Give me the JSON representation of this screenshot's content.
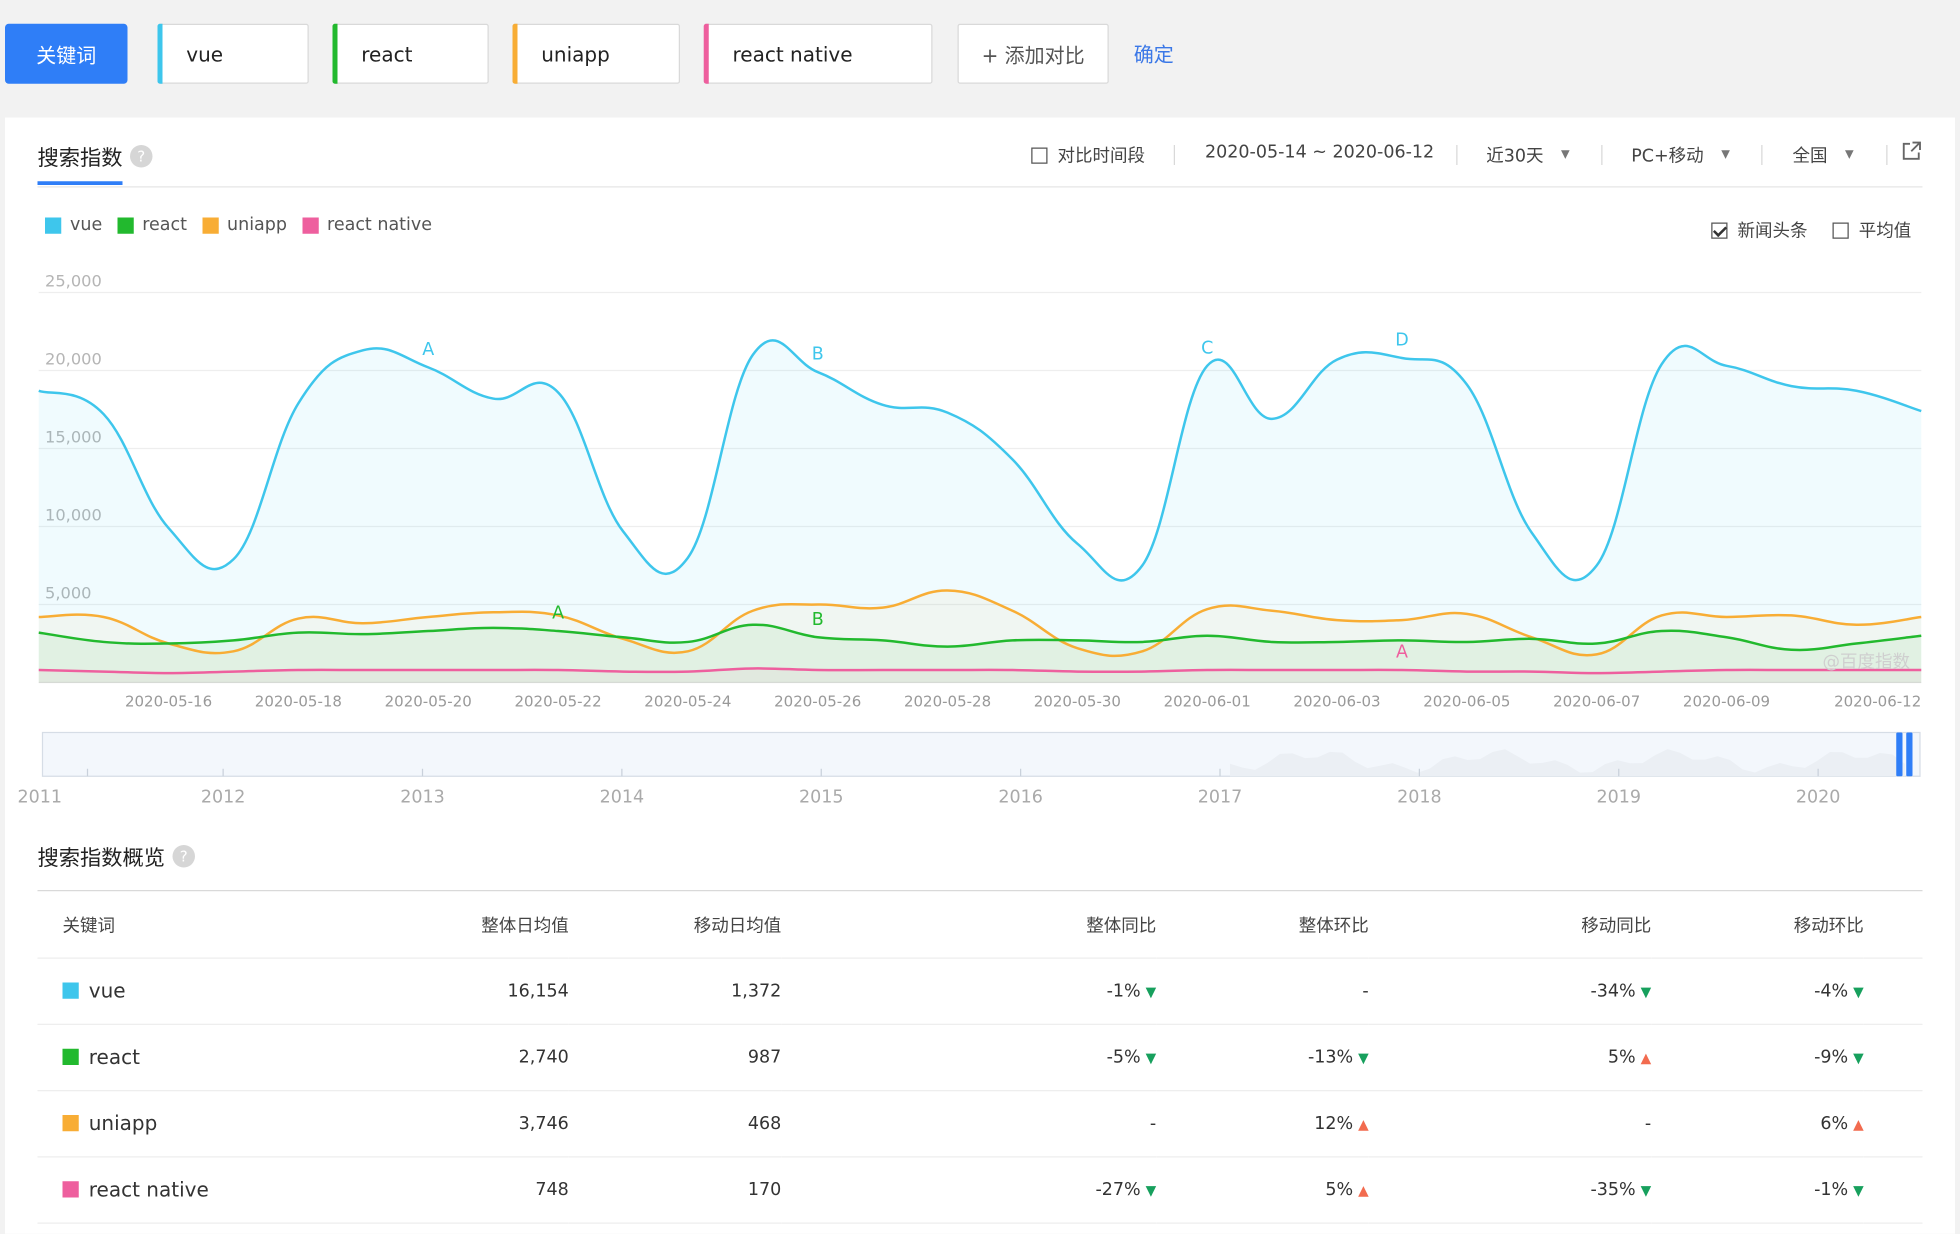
{
  "keyword_bar": {
    "mode_label": "关键词",
    "keywords": [
      {
        "label": "vue",
        "color": "#3ec6ec"
      },
      {
        "label": "react",
        "color": "#22b92e"
      },
      {
        "label": "uniapp",
        "color": "#f8ad35"
      },
      {
        "label": "react native",
        "color": "#ee5f9e"
      }
    ],
    "add_label": "+ 添加对比",
    "confirm_label": "确定"
  },
  "panel": {
    "title": "搜索指数",
    "help_icon": "?",
    "compare_period_label": "对比时间段",
    "date_range": "2020-05-14 ~ 2020-06-12",
    "period_select": "近30天",
    "device_select": "PC+移动",
    "region_select": "全国",
    "external_icon": "external-link-icon",
    "news_label": "新闻头条",
    "average_label": "平均值",
    "watermark": "@百度指数"
  },
  "chart_data": {
    "type": "area",
    "title": "搜索指数",
    "xlabel": "",
    "ylabel": "",
    "ylim": [
      0,
      25000
    ],
    "yticks": [
      "5,000",
      "10,000",
      "15,000",
      "20,000",
      "25,000"
    ],
    "x": [
      "2020-05-14",
      "2020-05-15",
      "2020-05-16",
      "2020-05-17",
      "2020-05-18",
      "2020-05-19",
      "2020-05-20",
      "2020-05-21",
      "2020-05-22",
      "2020-05-23",
      "2020-05-24",
      "2020-05-25",
      "2020-05-26",
      "2020-05-27",
      "2020-05-28",
      "2020-05-29",
      "2020-05-30",
      "2020-05-31",
      "2020-06-01",
      "2020-06-02",
      "2020-06-03",
      "2020-06-04",
      "2020-06-05",
      "2020-06-06",
      "2020-06-07",
      "2020-06-08",
      "2020-06-09",
      "2020-06-10",
      "2020-06-11",
      "2020-06-12"
    ],
    "xtick_labels": [
      "2020-05-16",
      "2020-05-18",
      "2020-05-20",
      "2020-05-22",
      "2020-05-24",
      "2020-05-26",
      "2020-05-28",
      "2020-05-30",
      "2020-06-01",
      "2020-06-03",
      "2020-06-05",
      "2020-06-07",
      "2020-06-09",
      "2020-06-12"
    ],
    "series": [
      {
        "name": "vue",
        "color": "#3ec6ec",
        "values": [
          18700,
          17200,
          9900,
          7900,
          17900,
          21300,
          20200,
          18200,
          18600,
          9700,
          8000,
          21000,
          19900,
          17800,
          17300,
          14300,
          8900,
          7500,
          20300,
          16900,
          20700,
          20800,
          19100,
          9600,
          7500,
          20400,
          20300,
          19000,
          18700,
          17400
        ]
      },
      {
        "name": "react",
        "color": "#22b92e",
        "values": [
          3200,
          2600,
          2500,
          2700,
          3200,
          3100,
          3300,
          3500,
          3300,
          2900,
          2600,
          3700,
          2900,
          2700,
          2300,
          2700,
          2700,
          2600,
          3000,
          2600,
          2600,
          2700,
          2600,
          2800,
          2500,
          3300,
          2900,
          2100,
          2500,
          3000
        ]
      },
      {
        "name": "uniapp",
        "color": "#f8ad35",
        "values": [
          4200,
          4200,
          2500,
          2000,
          4100,
          3800,
          4200,
          4500,
          4300,
          2800,
          2000,
          4600,
          5000,
          4800,
          5900,
          4600,
          2200,
          2000,
          4700,
          4600,
          4000,
          4000,
          4400,
          2900,
          1800,
          4300,
          4200,
          4300,
          3700,
          4200
        ]
      },
      {
        "name": "react native",
        "color": "#ee5f9e",
        "values": [
          800,
          700,
          600,
          700,
          800,
          800,
          800,
          800,
          800,
          700,
          700,
          900,
          800,
          800,
          800,
          800,
          700,
          700,
          800,
          800,
          800,
          800,
          700,
          700,
          600,
          700,
          800,
          800,
          800,
          800
        ]
      }
    ],
    "annotations": [
      {
        "label": "A",
        "series": "vue",
        "x": "2020-05-20"
      },
      {
        "label": "B",
        "series": "vue",
        "x": "2020-05-26"
      },
      {
        "label": "C",
        "series": "vue",
        "x": "2020-06-01"
      },
      {
        "label": "D",
        "series": "vue",
        "x": "2020-06-04"
      },
      {
        "label": "A",
        "series": "react",
        "x": "2020-05-22"
      },
      {
        "label": "B",
        "series": "react",
        "x": "2020-05-26"
      },
      {
        "label": "A",
        "series": "react native",
        "x": "2020-06-04"
      }
    ],
    "timeline_years": [
      "2011",
      "2012",
      "2013",
      "2014",
      "2015",
      "2016",
      "2017",
      "2018",
      "2019",
      "2020"
    ]
  },
  "overview": {
    "title": "搜索指数概览",
    "headers": [
      "关键词",
      "整体日均值",
      "移动日均值",
      "整体同比",
      "整体环比",
      "移动同比",
      "移动环比"
    ],
    "rows": [
      {
        "keyword": "vue",
        "color": "#3ec6ec",
        "overall_avg": "16,154",
        "mobile_avg": "1,372",
        "overall_yoy": "-1%",
        "overall_yoy_dir": "down",
        "overall_mom": "-",
        "overall_mom_dir": "",
        "mobile_yoy": "-34%",
        "mobile_yoy_dir": "down",
        "mobile_mom": "-4%",
        "mobile_mom_dir": "down"
      },
      {
        "keyword": "react",
        "color": "#22b92e",
        "overall_avg": "2,740",
        "mobile_avg": "987",
        "overall_yoy": "-5%",
        "overall_yoy_dir": "down",
        "overall_mom": "-13%",
        "overall_mom_dir": "down",
        "mobile_yoy": "5%",
        "mobile_yoy_dir": "up",
        "mobile_mom": "-9%",
        "mobile_mom_dir": "down"
      },
      {
        "keyword": "uniapp",
        "color": "#f8ad35",
        "overall_avg": "3,746",
        "mobile_avg": "468",
        "overall_yoy": "-",
        "overall_yoy_dir": "",
        "overall_mom": "12%",
        "overall_mom_dir": "up",
        "mobile_yoy": "-",
        "mobile_yoy_dir": "",
        "mobile_mom": "6%",
        "mobile_mom_dir": "up"
      },
      {
        "keyword": "react native",
        "color": "#ee5f9e",
        "overall_avg": "748",
        "mobile_avg": "170",
        "overall_yoy": "-27%",
        "overall_yoy_dir": "down",
        "overall_mom": "5%",
        "overall_mom_dir": "up",
        "mobile_yoy": "-35%",
        "mobile_yoy_dir": "down",
        "mobile_mom": "-1%",
        "mobile_mom_dir": "down"
      }
    ]
  }
}
